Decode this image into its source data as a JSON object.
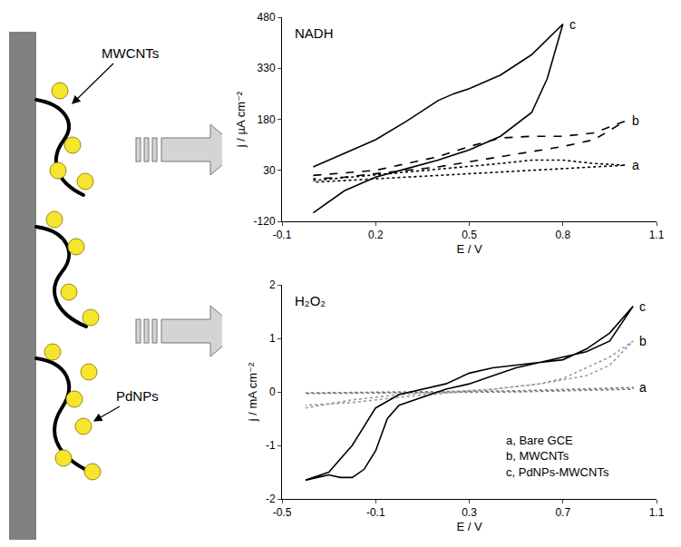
{
  "diagram": {
    "labels": {
      "nanotubes": "MWCNTs",
      "particles": "PdNPs"
    }
  },
  "chart_data": [
    {
      "type": "line",
      "title": "NADH",
      "x_label": "E / V",
      "y_label": "j / µA cm⁻²",
      "xlim": [
        -0.1,
        1.1
      ],
      "xticks": [
        -0.1,
        0.2,
        0.5,
        0.8,
        1.1
      ],
      "ylim": [
        -120,
        480
      ],
      "yticks": [
        -120,
        30,
        180,
        330,
        480
      ],
      "grid": false,
      "series": [
        {
          "name": "a",
          "color": "#000000",
          "line_style": "dot",
          "x": [
            0.0,
            0.3,
            0.5,
            0.6,
            0.7,
            0.8,
            0.9,
            1.0,
            1.0,
            0.8,
            0.6,
            0.4,
            0.2,
            0.0
          ],
          "values": [
            0,
            25,
            40,
            50,
            60,
            60,
            50,
            45,
            45,
            35,
            25,
            15,
            5,
            -5
          ]
        },
        {
          "name": "b",
          "color": "#000000",
          "line_style": "dash",
          "x": [
            0.0,
            0.2,
            0.4,
            0.5,
            0.6,
            0.7,
            0.8,
            0.9,
            1.0,
            1.0,
            0.9,
            0.8,
            0.7,
            0.6,
            0.5,
            0.4,
            0.3,
            0.2,
            0.1,
            0.0
          ],
          "values": [
            15,
            30,
            70,
            100,
            125,
            130,
            130,
            140,
            175,
            175,
            120,
            100,
            85,
            70,
            55,
            40,
            30,
            20,
            10,
            5
          ]
        },
        {
          "name": "c",
          "color": "#000000",
          "line_style": "solid",
          "x": [
            0.0,
            0.1,
            0.2,
            0.3,
            0.4,
            0.45,
            0.5,
            0.6,
            0.7,
            0.8,
            0.8,
            0.75,
            0.7,
            0.6,
            0.5,
            0.4,
            0.3,
            0.2,
            0.1,
            0.0
          ],
          "values": [
            40,
            80,
            120,
            175,
            235,
            255,
            270,
            310,
            370,
            460,
            460,
            300,
            200,
            130,
            90,
            60,
            35,
            10,
            -30,
            -95
          ]
        }
      ]
    },
    {
      "type": "line",
      "title": "H₂O₂",
      "x_label": "E / V",
      "y_label": "j / mA cm⁻²",
      "xlim": [
        -0.5,
        1.1
      ],
      "xticks": [
        -0.5,
        -0.1,
        0.3,
        0.7,
        1.1
      ],
      "ylim": [
        -2,
        2
      ],
      "yticks": [
        -2,
        -1,
        0,
        1,
        2
      ],
      "grid": false,
      "annotations": [
        {
          "text": "a, Bare GCE",
          "x": 0.45,
          "y": -0.9
        },
        {
          "text": "b, MWCNTs",
          "x": 0.45,
          "y": -1.2
        },
        {
          "text": "c, PdNPs-MWCNTs",
          "x": 0.45,
          "y": -1.5
        }
      ],
      "series": [
        {
          "name": "a",
          "color": "#777777",
          "line_style": "dot",
          "x": [
            -0.4,
            0.0,
            0.5,
            1.0,
            1.0,
            0.5,
            0.0,
            -0.4
          ],
          "values": [
            -0.02,
            0.0,
            0.02,
            0.08,
            0.05,
            0.0,
            -0.01,
            -0.03
          ]
        },
        {
          "name": "b",
          "color": "#999999",
          "line_style": "dot",
          "x": [
            -0.4,
            -0.2,
            0.0,
            0.2,
            0.4,
            0.6,
            0.7,
            0.8,
            0.9,
            1.0,
            1.0,
            0.9,
            0.8,
            0.6,
            0.4,
            0.2,
            0.0,
            -0.2,
            -0.4
          ],
          "values": [
            -0.3,
            -0.15,
            -0.05,
            0.0,
            0.05,
            0.15,
            0.25,
            0.45,
            0.65,
            0.95,
            0.95,
            0.5,
            0.3,
            0.15,
            0.05,
            -0.02,
            -0.1,
            -0.2,
            -0.25
          ]
        },
        {
          "name": "c",
          "color": "#000000",
          "line_style": "solid",
          "x": [
            -0.4,
            -0.3,
            -0.2,
            -0.1,
            0.0,
            0.1,
            0.2,
            0.3,
            0.4,
            0.5,
            0.6,
            0.7,
            0.8,
            0.9,
            1.0,
            1.0,
            0.9,
            0.8,
            0.7,
            0.6,
            0.5,
            0.4,
            0.3,
            0.2,
            0.1,
            0.0,
            -0.05,
            -0.1,
            -0.15,
            -0.2,
            -0.25,
            -0.3,
            -0.35,
            -0.4
          ],
          "values": [
            -1.65,
            -1.5,
            -1.0,
            -0.3,
            -0.05,
            0.05,
            0.15,
            0.35,
            0.45,
            0.5,
            0.55,
            0.6,
            0.8,
            1.1,
            1.6,
            1.6,
            0.95,
            0.75,
            0.65,
            0.55,
            0.45,
            0.3,
            0.15,
            0.05,
            -0.1,
            -0.25,
            -0.5,
            -1.1,
            -1.45,
            -1.6,
            -1.6,
            -1.55,
            -1.6,
            -1.65
          ]
        }
      ]
    }
  ]
}
